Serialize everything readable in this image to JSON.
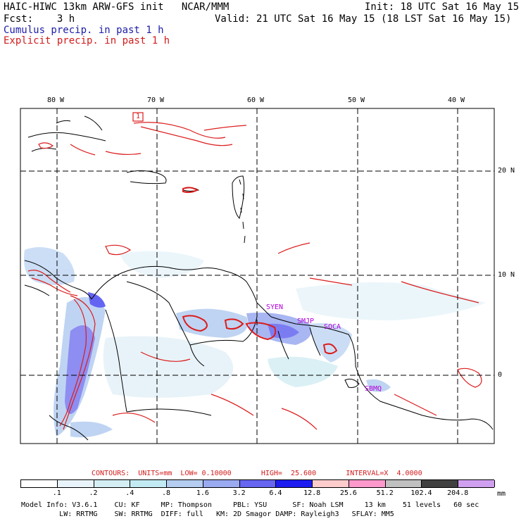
{
  "header": {
    "model_line": "HAIC-HIWC 13km ARW-GFS init   NCAR/MMM",
    "init_line": "Init: 18 UTC Sat 16 May 15",
    "fcst_line": "Fcst:    3 h",
    "valid_line": "Valid: 21 UTC Sat 16 May 15 (18 LST Sat 16 May 15)",
    "legend_cumulus": "Cumulus precip. in past 1 h",
    "legend_explicit": "Explicit precip. in past 1 h"
  },
  "map": {
    "lon_labels": [
      "80 W",
      "70 W",
      "60 W",
      "50 W",
      "40 W"
    ],
    "lat_labels": [
      "20 N",
      "10 N",
      "0"
    ],
    "place_labels": [
      "SYEN",
      "SMJP",
      "SOCA",
      "SBMQ"
    ],
    "box_label": "1",
    "colors": {
      "land_line": "#000000",
      "explicit_contour": "#dc1c1c",
      "place_label": "#b400dc",
      "grid": "#000000"
    }
  },
  "contours": {
    "units_label": "CONTOURS:  UNITS=mm  LOW= 0.10000       HIGH=  25.600       INTERVAL=X  4.0000"
  },
  "colorbar": {
    "unit": "mm",
    "ticks": [
      ".1",
      ".2",
      ".4",
      ".8",
      "1.6",
      "3.2",
      "6.4",
      "12.8",
      "25.6",
      "51.2",
      "102.4",
      "204.8"
    ],
    "colors": [
      "#ffffff",
      "#e8f4fa",
      "#d4eef4",
      "#c2eaf2",
      "#b4cdf0",
      "#9aaaf0",
      "#6666f0",
      "#1c1cf0",
      "#ffcccc",
      "#ff99cc",
      "#c0c0c0",
      "#404040",
      "#d0a0f0"
    ]
  },
  "footer": {
    "line1": "Model Info: V3.6.1    CU: KF     MP: Thompson     PBL: YSU      SF: Noah LSM     13 km    51 levels   60 sec",
    "line2": "         LW: RRTMG    SW: RRTMG  DIFF: full   KM: 2D Smagor DAMP: Rayleigh3   SFLAY: MM5"
  }
}
